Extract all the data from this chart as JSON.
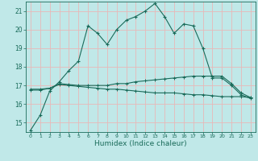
{
  "xlabel": "Humidex (Indice chaleur)",
  "bg_color": "#c0e8e8",
  "grid_color": "#e8b8b8",
  "line_color": "#1a6b5a",
  "x_values": [
    0,
    1,
    2,
    3,
    4,
    5,
    6,
    7,
    8,
    9,
    10,
    11,
    12,
    13,
    14,
    15,
    16,
    17,
    18,
    19,
    20,
    21,
    22,
    23
  ],
  "line1_y": [
    14.6,
    15.4,
    16.7,
    17.2,
    17.8,
    18.3,
    20.2,
    19.8,
    19.2,
    20.0,
    20.5,
    20.7,
    21.0,
    21.4,
    20.7,
    19.8,
    20.3,
    20.2,
    19.0,
    17.4,
    17.4,
    17.0,
    16.5,
    16.3
  ],
  "line2_y": [
    16.8,
    16.8,
    16.85,
    17.1,
    17.05,
    17.0,
    17.0,
    17.0,
    17.0,
    17.1,
    17.1,
    17.2,
    17.25,
    17.3,
    17.35,
    17.4,
    17.45,
    17.5,
    17.5,
    17.5,
    17.5,
    17.1,
    16.6,
    16.35
  ],
  "line3_y": [
    16.75,
    16.75,
    16.85,
    17.05,
    17.0,
    16.95,
    16.9,
    16.85,
    16.8,
    16.8,
    16.75,
    16.7,
    16.65,
    16.6,
    16.6,
    16.6,
    16.55,
    16.5,
    16.5,
    16.45,
    16.4,
    16.4,
    16.4,
    16.35
  ],
  "ylim": [
    14.5,
    21.5
  ],
  "xlim": [
    -0.5,
    23.5
  ],
  "yticks": [
    15,
    16,
    17,
    18,
    19,
    20,
    21
  ],
  "xtick_labels": [
    "0",
    "1",
    "2",
    "3",
    "4",
    "5",
    "6",
    "7",
    "8",
    "9",
    "10",
    "11",
    "12",
    "13",
    "14",
    "15",
    "16",
    "17",
    "18",
    "19",
    "20",
    "21",
    "22",
    "23"
  ]
}
